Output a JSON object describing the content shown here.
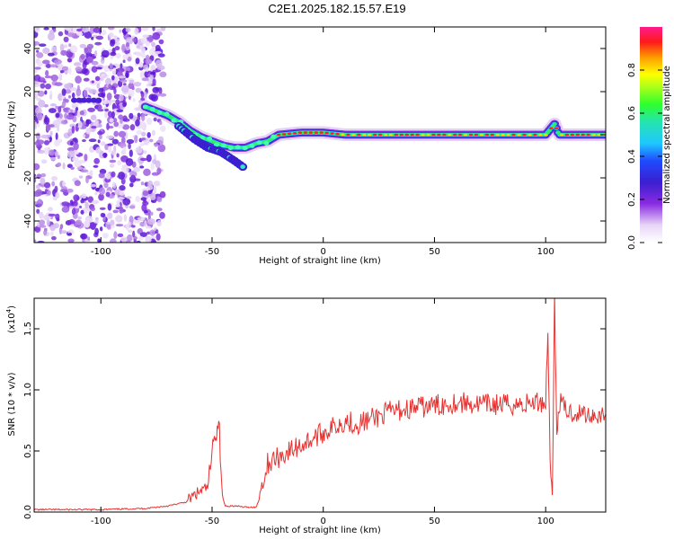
{
  "title": "C2E1.2025.182.15.57.E19",
  "chart_data": [
    {
      "type": "heatmap",
      "xlabel": "Height of straight line (km)",
      "ylabel": "Frequency (Hz)",
      "xlim": [
        -130,
        127
      ],
      "ylim": [
        -50,
        50
      ],
      "xticks": [
        -100,
        -50,
        0,
        50,
        100
      ],
      "yticks": [
        -40,
        -20,
        0,
        20,
        40
      ],
      "colorbar": {
        "label": "Normalized spectral amplitude",
        "range": [
          0,
          1
        ],
        "ticks": [
          "0.0",
          "0.2",
          "0.4",
          "0.6",
          "0.8"
        ]
      },
      "ridge": [
        {
          "x": -80,
          "y": 13
        },
        {
          "x": -75,
          "y": 11
        },
        {
          "x": -70,
          "y": 9
        },
        {
          "x": -65,
          "y": 6
        },
        {
          "x": -60,
          "y": 2
        },
        {
          "x": -55,
          "y": -1
        },
        {
          "x": -50,
          "y": -3
        },
        {
          "x": -45,
          "y": -5
        },
        {
          "x": -40,
          "y": -6
        },
        {
          "x": -35,
          "y": -6
        },
        {
          "x": -30,
          "y": -4
        },
        {
          "x": -25,
          "y": -3
        },
        {
          "x": -20,
          "y": 0
        },
        {
          "x": -10,
          "y": 1
        },
        {
          "x": 0,
          "y": 1
        },
        {
          "x": 10,
          "y": 0
        },
        {
          "x": 20,
          "y": 0
        },
        {
          "x": 40,
          "y": 0
        },
        {
          "x": 60,
          "y": 0
        },
        {
          "x": 80,
          "y": 0
        },
        {
          "x": 100,
          "y": 0
        },
        {
          "x": 104,
          "y": 5
        },
        {
          "x": 106,
          "y": 0
        },
        {
          "x": 127,
          "y": 0
        }
      ],
      "secondary_branch": [
        {
          "x": -65,
          "y": 4
        },
        {
          "x": -58,
          "y": -2
        },
        {
          "x": -52,
          "y": -6
        },
        {
          "x": -46,
          "y": -8
        },
        {
          "x": -40,
          "y": -12
        },
        {
          "x": -36,
          "y": -15
        }
      ],
      "noise_region": {
        "x": [
          -130,
          -72
        ],
        "y": [
          -50,
          50
        ]
      },
      "intermittent_line": {
        "x": [
          -112,
          -100
        ],
        "y": 16
      }
    },
    {
      "type": "line",
      "xlabel": "Height of straight line (km)",
      "ylabel": "SNR (10 * v/v)",
      "y_scale_label": "(x10",
      "y_scale_exponent": "4",
      "xlim": [
        -130,
        127
      ],
      "ylim": [
        0,
        1.75
      ],
      "xticks": [
        -100,
        -50,
        0,
        50,
        100
      ],
      "yticks": [
        "0.0",
        "0.5",
        "1.0",
        "1.5"
      ],
      "color": "#e8312f",
      "series": [
        {
          "x": [
            -130,
            -100,
            -80,
            -70,
            -62,
            -57,
            -54,
            -52,
            -50,
            -49,
            -48,
            -47,
            -46,
            -45,
            -44,
            -40,
            -35,
            -30,
            -28,
            -26,
            -25,
            -20,
            -15,
            -10,
            -5,
            0,
            5,
            10,
            15,
            20,
            30,
            40,
            50,
            60,
            70,
            80,
            90,
            95,
            100,
            101,
            102,
            103,
            104,
            105,
            106,
            110,
            120,
            127
          ],
          "y": [
            0.02,
            0.02,
            0.03,
            0.05,
            0.08,
            0.15,
            0.18,
            0.2,
            0.45,
            0.7,
            0.6,
            0.82,
            0.3,
            0.1,
            0.05,
            0.05,
            0.04,
            0.04,
            0.2,
            0.3,
            0.4,
            0.45,
            0.5,
            0.55,
            0.6,
            0.65,
            0.7,
            0.75,
            0.72,
            0.75,
            0.82,
            0.85,
            0.87,
            0.9,
            0.88,
            0.88,
            0.88,
            0.9,
            0.9,
            1.5,
            0.4,
            0.15,
            1.75,
            0.6,
            0.9,
            0.82,
            0.8,
            0.8
          ]
        }
      ]
    }
  ]
}
